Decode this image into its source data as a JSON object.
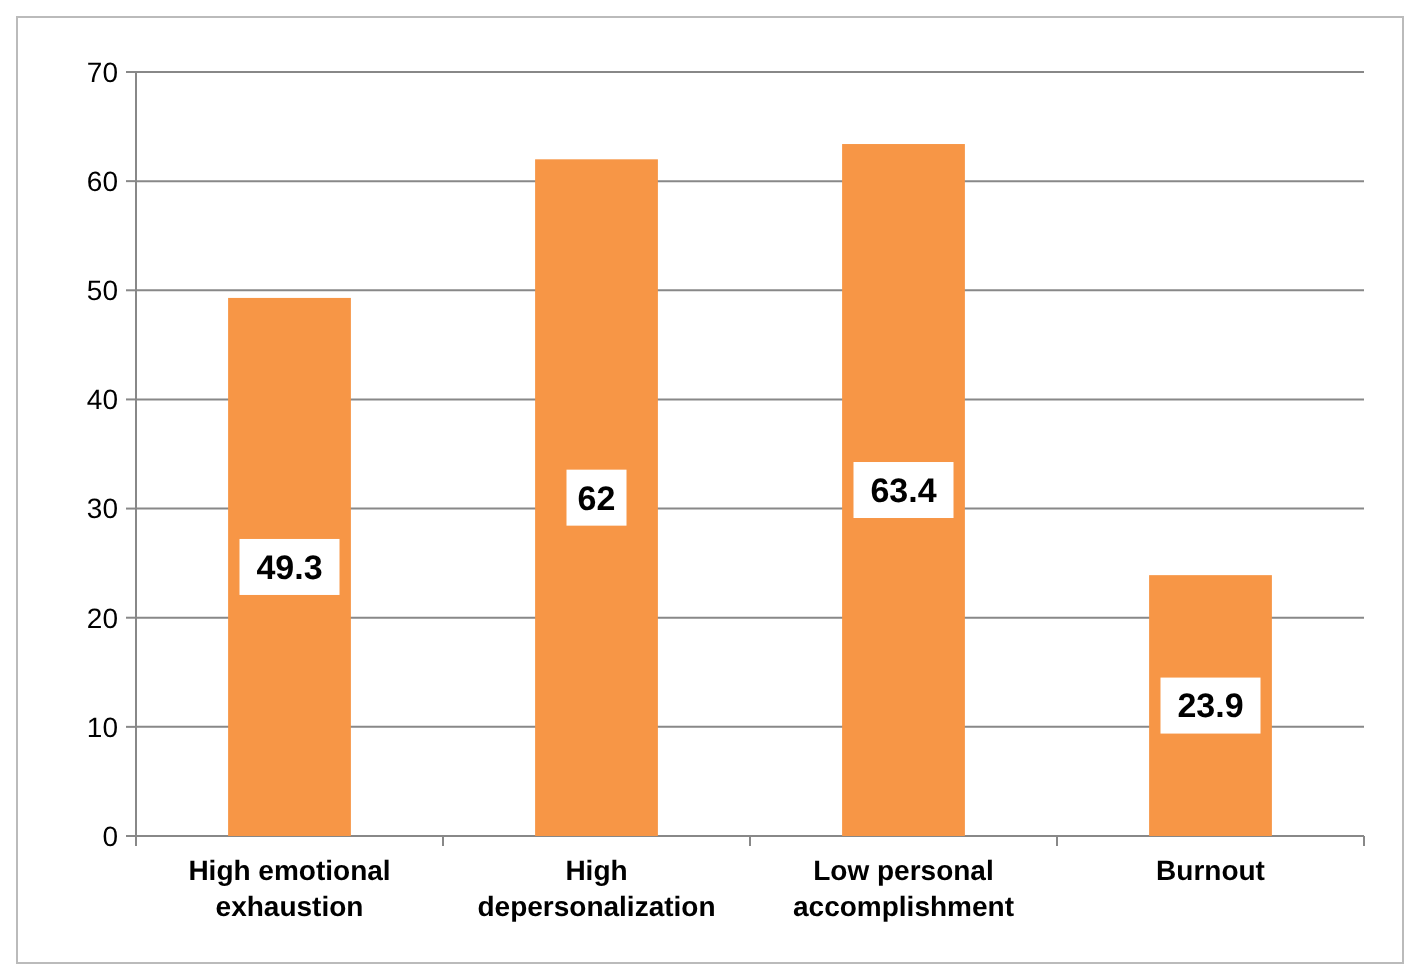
{
  "chart_data": {
    "type": "bar",
    "categories": [
      "High emotional exhaustion",
      "High depersonalization",
      "Low personal accomplishment",
      "Burnout"
    ],
    "values": [
      49.3,
      62,
      63.4,
      23.9
    ],
    "color": "#f79646",
    "ylim": [
      0,
      70
    ],
    "yticks": [
      0,
      10,
      20,
      30,
      40,
      50,
      60,
      70
    ],
    "grid": "y",
    "data_labels": true
  }
}
